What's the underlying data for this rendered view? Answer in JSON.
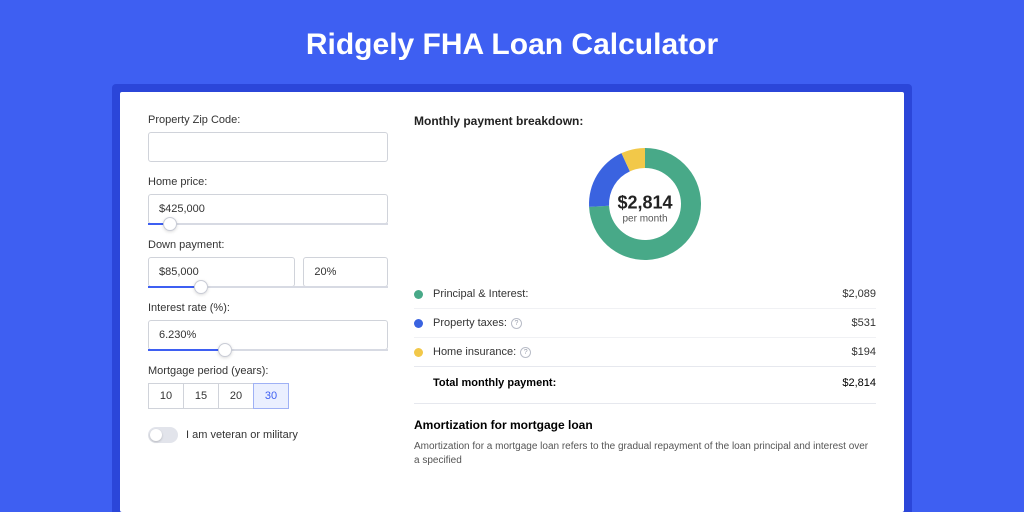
{
  "page": {
    "title": "Ridgely FHA Loan Calculator",
    "background_color": "#3e5ff2",
    "shadow_color": "#2b46d9"
  },
  "form": {
    "zip": {
      "label": "Property Zip Code:",
      "value": ""
    },
    "home_price": {
      "label": "Home price:",
      "value": "$425,000",
      "slider_pct": 9
    },
    "down_payment": {
      "label": "Down payment:",
      "value": "$85,000",
      "pct": "20%",
      "slider_pct": 22
    },
    "interest": {
      "label": "Interest rate (%):",
      "value": "6.230%",
      "slider_pct": 32
    },
    "period": {
      "label": "Mortgage period (years):",
      "options": [
        "10",
        "15",
        "20",
        "30"
      ],
      "selected": "30"
    },
    "veteran": {
      "label": "I am veteran or military",
      "checked": false
    }
  },
  "breakdown": {
    "title": "Monthly payment breakdown:",
    "donut": {
      "amount": "$2,814",
      "sub": "per month",
      "segments": [
        {
          "label": "Principal & Interest:",
          "value": "$2,089",
          "pct": 74.2,
          "color": "#48a988"
        },
        {
          "label": "Property taxes:",
          "value": "$531",
          "pct": 18.9,
          "color": "#3a63e0",
          "info": true
        },
        {
          "label": "Home insurance:",
          "value": "$194",
          "pct": 6.9,
          "color": "#f2c849",
          "info": true
        }
      ]
    },
    "total": {
      "label": "Total monthly payment:",
      "value": "$2,814"
    }
  },
  "amortization": {
    "title": "Amortization for mortgage loan",
    "text": "Amortization for a mortgage loan refers to the gradual repayment of the loan principal and interest over a specified"
  }
}
